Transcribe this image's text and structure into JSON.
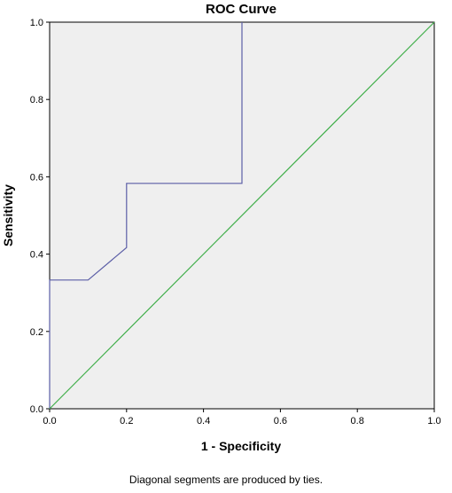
{
  "chart_data": {
    "type": "line",
    "title": "ROC Curve",
    "xlabel": "1 - Specificity",
    "ylabel": "Sensitivity",
    "xlim": [
      0.0,
      1.0
    ],
    "ylim": [
      0.0,
      1.0
    ],
    "x_ticks": [
      "0.0",
      "0.2",
      "0.4",
      "0.6",
      "0.8",
      "1.0"
    ],
    "y_ticks": [
      "0.0",
      "0.2",
      "0.4",
      "0.6",
      "0.8",
      "1.0"
    ],
    "grid": false,
    "legend": "none",
    "footnote": "Diagonal segments are produced by ties.",
    "plot_background": "#efefef",
    "series": [
      {
        "color": "#5b5ea6",
        "x": [
          0.0,
          0.0,
          0.1,
          0.2,
          0.2,
          0.5,
          0.5
        ],
        "y": [
          0.0,
          0.333,
          0.333,
          0.417,
          0.583,
          0.583,
          1.0
        ]
      },
      {
        "color": "#3fae49",
        "x": [
          0.0,
          1.0
        ],
        "y": [
          0.0,
          1.0
        ]
      }
    ]
  }
}
